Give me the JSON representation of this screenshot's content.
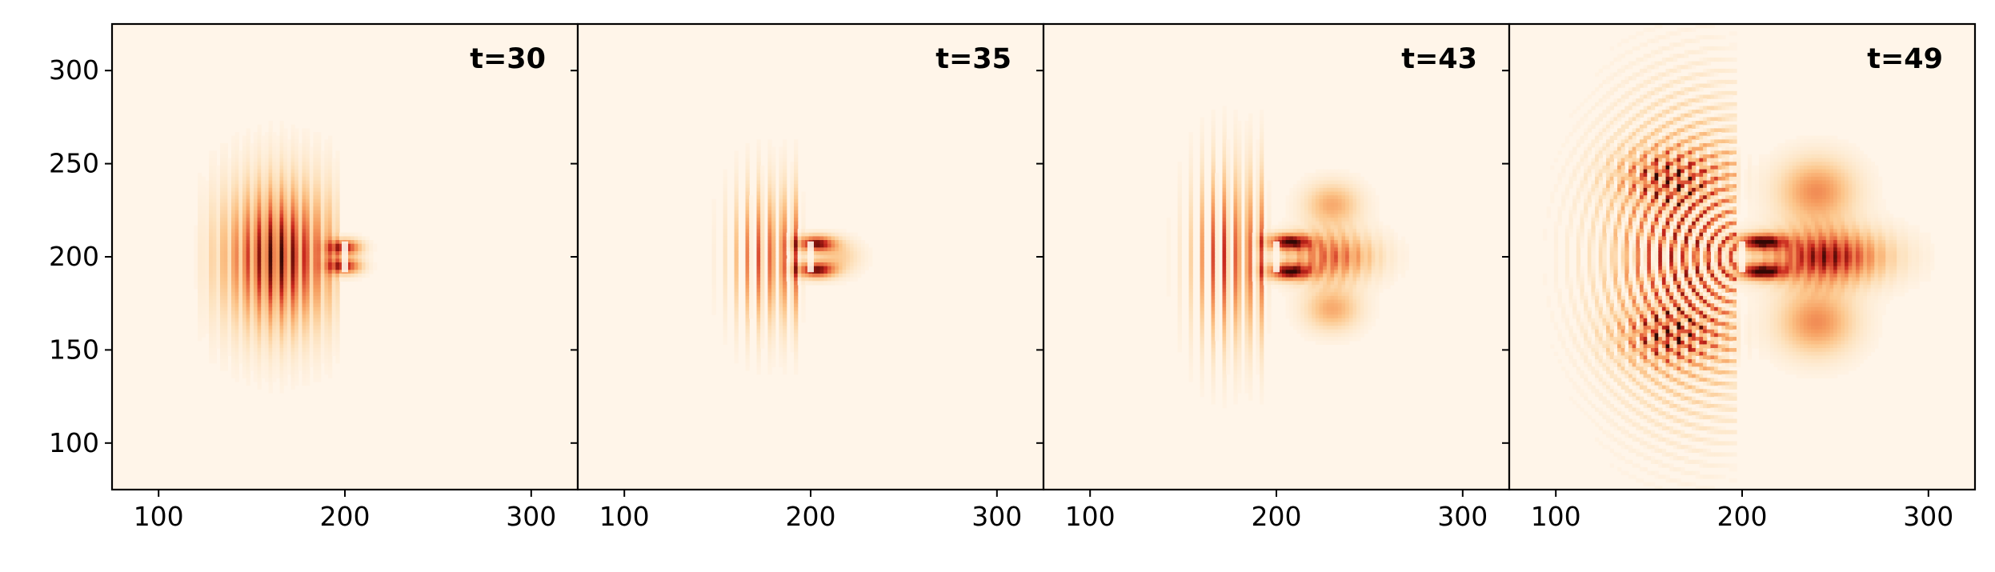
{
  "chart_data": {
    "type": "heatmap",
    "colormap": "OrRd",
    "background_color": "#fff5e9",
    "contour_color": "#8a6f5c",
    "xlim": [
      75,
      325
    ],
    "ylim": [
      75,
      325
    ],
    "xticks": [
      100,
      200,
      300
    ],
    "yticks": [
      100,
      150,
      200,
      250,
      300
    ],
    "xtick_labels": [
      "100",
      "200",
      "300"
    ],
    "ytick_labels": [
      "100",
      "150",
      "200",
      "250",
      "300"
    ],
    "shared_y": true,
    "slit_x": 200,
    "slit_y": [
      190,
      210
    ],
    "panels": [
      {
        "label": "t=30",
        "t": 30
      },
      {
        "label": "t=35",
        "t": 35
      },
      {
        "label": "t=43",
        "t": 43
      },
      {
        "label": "t=49",
        "t": 49
      }
    ]
  }
}
